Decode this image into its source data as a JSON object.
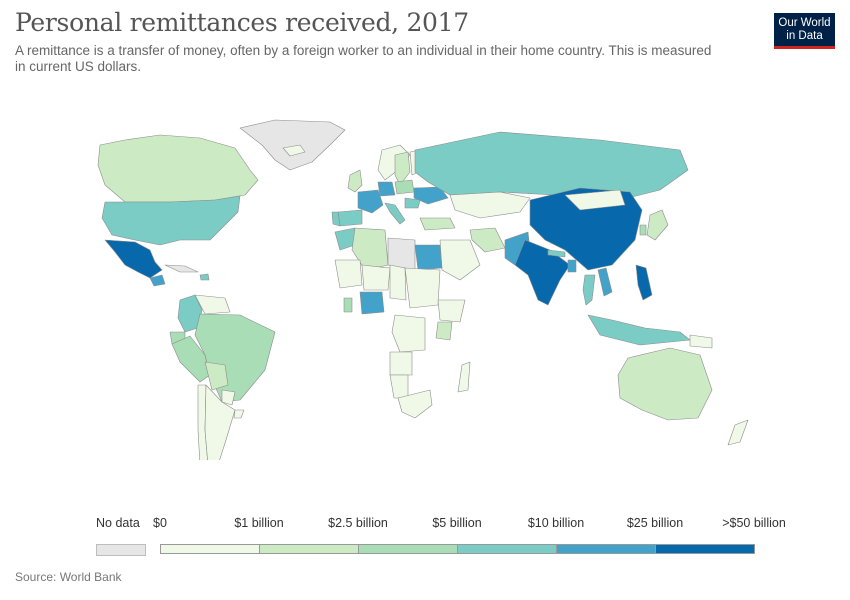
{
  "header": {
    "title": "Personal remittances received, 2017",
    "subtitle": "A remittance is a transfer of money, often by a foreign worker to an individual in their home country. This is measured in current US dollars.",
    "logo_line1": "Our World",
    "logo_line2": "in Data"
  },
  "legend": {
    "no_data_label": "No data",
    "no_data_color": "#e6e6e6",
    "tick_labels": [
      "$0",
      "$1 billion",
      "$2.5 billion",
      "$5 billion",
      "$10 billion",
      "$25 billion",
      ">$50 billion"
    ],
    "colors": [
      "#f0f9e8",
      "#ccebc5",
      "#a8ddb5",
      "#7bccc4",
      "#43a2ca",
      "#0868ac"
    ]
  },
  "source": "Source: World Bank",
  "map_data": {
    "metric": "Personal remittances received",
    "year": 2017,
    "regions": [
      {
        "name": "Greenland",
        "bin": -1
      },
      {
        "name": "Canada",
        "bin": 1
      },
      {
        "name": "United States",
        "bin": 3
      },
      {
        "name": "Mexico",
        "bin": 5
      },
      {
        "name": "Guatemala",
        "bin": 4
      },
      {
        "name": "Cuba",
        "bin": -1
      },
      {
        "name": "Dominican Republic",
        "bin": 3
      },
      {
        "name": "Colombia",
        "bin": 3
      },
      {
        "name": "Venezuela",
        "bin": 0
      },
      {
        "name": "Ecuador",
        "bin": 2
      },
      {
        "name": "Peru",
        "bin": 2
      },
      {
        "name": "Brazil",
        "bin": 2
      },
      {
        "name": "Bolivia",
        "bin": 1
      },
      {
        "name": "Paraguay",
        "bin": 0
      },
      {
        "name": "Chile",
        "bin": 0
      },
      {
        "name": "Argentina",
        "bin": 0
      },
      {
        "name": "Uruguay",
        "bin": 0
      },
      {
        "name": "Iceland",
        "bin": 0
      },
      {
        "name": "Norway",
        "bin": 0
      },
      {
        "name": "Sweden",
        "bin": 1
      },
      {
        "name": "Finland",
        "bin": 0
      },
      {
        "name": "United Kingdom",
        "bin": 1
      },
      {
        "name": "France",
        "bin": 4
      },
      {
        "name": "Spain",
        "bin": 3
      },
      {
        "name": "Portugal",
        "bin": 3
      },
      {
        "name": "Germany",
        "bin": 4
      },
      {
        "name": "Italy",
        "bin": 3
      },
      {
        "name": "Poland",
        "bin": 2
      },
      {
        "name": "Ukraine",
        "bin": 4
      },
      {
        "name": "Romania",
        "bin": 3
      },
      {
        "name": "Russia",
        "bin": 3
      },
      {
        "name": "Kazakhstan",
        "bin": 0
      },
      {
        "name": "Turkey",
        "bin": 1
      },
      {
        "name": "Iran",
        "bin": 1
      },
      {
        "name": "Saudi Arabia",
        "bin": 0
      },
      {
        "name": "Morocco",
        "bin": 3
      },
      {
        "name": "Algeria",
        "bin": 1
      },
      {
        "name": "Libya",
        "bin": -1
      },
      {
        "name": "Egypt",
        "bin": 4
      },
      {
        "name": "Mali",
        "bin": 0
      },
      {
        "name": "Niger",
        "bin": 0
      },
      {
        "name": "Chad",
        "bin": 0
      },
      {
        "name": "Sudan",
        "bin": 0
      },
      {
        "name": "Nigeria",
        "bin": 4
      },
      {
        "name": "Ghana",
        "bin": 2
      },
      {
        "name": "Ethiopia",
        "bin": 0
      },
      {
        "name": "Kenya",
        "bin": 1
      },
      {
        "name": "DR Congo",
        "bin": 0
      },
      {
        "name": "Angola",
        "bin": 0
      },
      {
        "name": "Namibia",
        "bin": 0
      },
      {
        "name": "South Africa",
        "bin": 0
      },
      {
        "name": "Madagascar",
        "bin": 0
      },
      {
        "name": "Pakistan",
        "bin": 4
      },
      {
        "name": "India",
        "bin": 5
      },
      {
        "name": "Nepal",
        "bin": 3
      },
      {
        "name": "Bangladesh",
        "bin": 4
      },
      {
        "name": "China",
        "bin": 5
      },
      {
        "name": "Mongolia",
        "bin": 0
      },
      {
        "name": "Vietnam",
        "bin": 4
      },
      {
        "name": "Thailand",
        "bin": 3
      },
      {
        "name": "Philippines",
        "bin": 5
      },
      {
        "name": "Indonesia",
        "bin": 3
      },
      {
        "name": "Japan",
        "bin": 1
      },
      {
        "name": "South Korea",
        "bin": 2
      },
      {
        "name": "Australia",
        "bin": 1
      },
      {
        "name": "New Zealand",
        "bin": 0
      },
      {
        "name": "Papua New Guinea",
        "bin": 0
      }
    ]
  }
}
